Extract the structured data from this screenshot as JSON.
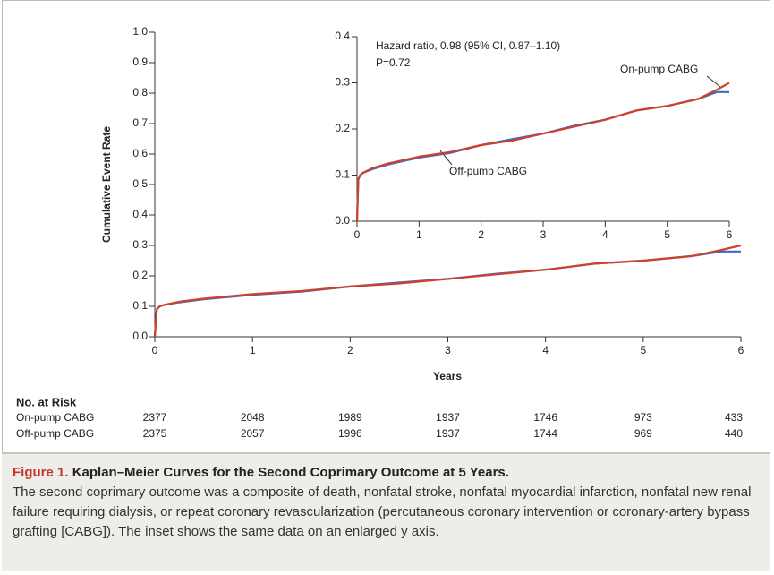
{
  "chart_data": [
    {
      "type": "line",
      "xlabel": "Years",
      "ylabel": "Cumulative Event Rate",
      "x": [
        0,
        0.02,
        0.05,
        0.1,
        0.25,
        0.5,
        1,
        1.5,
        2,
        2.5,
        3,
        3.5,
        4,
        4.5,
        5,
        5.5,
        5.8,
        6
      ],
      "series": [
        {
          "color": "#d0402a",
          "values": [
            0,
            0.09,
            0.1,
            0.105,
            0.115,
            0.125,
            0.14,
            0.15,
            0.165,
            0.175,
            0.19,
            0.205,
            0.22,
            0.24,
            0.25,
            0.265,
            0.285,
            0.3
          ]
        },
        {
          "color": "#3a6bc9",
          "values": [
            0,
            0.09,
            0.1,
            0.105,
            0.113,
            0.123,
            0.138,
            0.148,
            0.165,
            0.178,
            0.19,
            0.207,
            0.22,
            0.24,
            0.25,
            0.265,
            0.28,
            0.28
          ]
        }
      ],
      "xlim": [
        0,
        6
      ],
      "xticks": [
        0,
        1,
        2,
        3,
        4,
        5,
        6
      ],
      "ylim": [
        0,
        1.0
      ],
      "yticks": [
        {
          "value": 0,
          "label": "0.0"
        },
        0.1,
        0.2,
        0.3,
        0.4,
        0.5,
        0.6,
        0.7,
        0.8,
        0.9,
        {
          "value": 1.0,
          "label": "1.0"
        }
      ]
    },
    {
      "type": "line",
      "annotations": [
        "Hazard ratio, 0.98 (95% CI, 0.87–1.10)",
        "P=0.72"
      ],
      "x": [
        0,
        0.02,
        0.05,
        0.1,
        0.25,
        0.5,
        1,
        1.5,
        2,
        2.5,
        3,
        3.5,
        4,
        4.5,
        5,
        5.5,
        5.8,
        6
      ],
      "series": [
        {
          "name": "On-pump CABG",
          "color": "#d0402a",
          "values": [
            0,
            0.09,
            0.1,
            0.105,
            0.115,
            0.125,
            0.14,
            0.15,
            0.165,
            0.175,
            0.19,
            0.205,
            0.22,
            0.24,
            0.25,
            0.265,
            0.285,
            0.3
          ]
        },
        {
          "name": "Off-pump CABG",
          "color": "#3a6bc9",
          "values": [
            0,
            0.09,
            0.1,
            0.105,
            0.113,
            0.123,
            0.138,
            0.148,
            0.165,
            0.178,
            0.19,
            0.207,
            0.22,
            0.24,
            0.25,
            0.265,
            0.28,
            0.28
          ]
        }
      ],
      "xlim": [
        0,
        6
      ],
      "xticks": [
        0,
        1,
        2,
        3,
        4,
        5,
        6
      ],
      "ylim": [
        0,
        0.4
      ],
      "yticks": [
        {
          "value": 0,
          "label": "0.0"
        },
        0.1,
        0.2,
        0.3,
        0.4
      ]
    }
  ],
  "risk_table": {
    "title": "No. at Risk",
    "rows": [
      {
        "label": "On-pump CABG",
        "values": [
          2377,
          2048,
          1989,
          1937,
          1746,
          973,
          433
        ]
      },
      {
        "label": "Off-pump CABG",
        "values": [
          2375,
          2057,
          1996,
          1937,
          1744,
          969,
          440
        ]
      }
    ]
  },
  "caption": {
    "label": "Figure 1.",
    "title": "Kaplan–Meier Curves for the Second Coprimary Outcome at 5 Years.",
    "text": "The second coprimary outcome was a composite of death, nonfatal stroke, nonfatal myocardial infarction, nonfatal new renal failure requiring dialysis, or repeat coronary revascularization (percutaneous coronary intervention or coronary-artery bypass grafting [CABG]). The inset shows the same data on an enlarged y axis."
  }
}
